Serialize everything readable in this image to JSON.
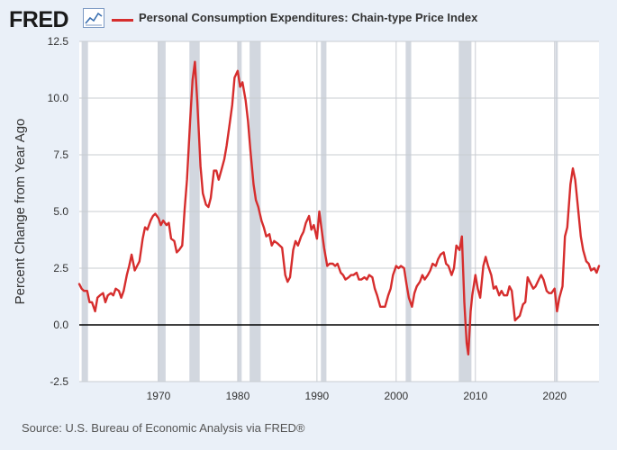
{
  "header": {
    "logo_text": "FRED",
    "logo_icon": "trend-line-icon",
    "series_title": "Personal Consumption Expenditures: Chain-type Price Index"
  },
  "footer": {
    "source": "Source: U.S. Bureau of Economic Analysis via FRED®"
  },
  "colors": {
    "series": "#d62d2d",
    "recession": "#d2d7df",
    "plot_bg": "#ffffff",
    "page_bg": "#eaf0f8",
    "grid": "#c8ccd2",
    "zero_line": "#000000"
  },
  "chart_data": {
    "type": "line",
    "title": "Personal Consumption Expenditures: Chain-type Price Index",
    "xlabel": "",
    "ylabel": "Percent Change from Year Ago",
    "xlim": [
      1960,
      2025.6
    ],
    "ylim": [
      -2.5,
      12.5
    ],
    "yticks": [
      -2.5,
      0.0,
      2.5,
      5.0,
      7.5,
      10.0,
      12.5
    ],
    "ytick_labels": [
      "-2.5",
      "0.0",
      "2.5",
      "5.0",
      "7.5",
      "10.0",
      "12.5"
    ],
    "xticks": [
      1970,
      1980,
      1990,
      2000,
      2010,
      2020
    ],
    "xtick_labels": [
      "1970",
      "1980",
      "1990",
      "2000",
      "2010",
      "2020"
    ],
    "grid": true,
    "recessions": [
      [
        1960.3,
        1961.1
      ],
      [
        1969.9,
        1970.9
      ],
      [
        1973.9,
        1975.2
      ],
      [
        1980.0,
        1980.5
      ],
      [
        1981.5,
        1982.9
      ],
      [
        1990.5,
        1991.2
      ],
      [
        2001.2,
        2001.9
      ],
      [
        2007.9,
        2009.5
      ],
      [
        2020.1,
        2020.4
      ]
    ],
    "series": [
      {
        "name": "Personal Consumption Expenditures: Chain-type Price Index",
        "x": [
          1960.0,
          1960.3,
          1960.6,
          1961.0,
          1961.3,
          1961.6,
          1962.0,
          1962.3,
          1962.6,
          1963.0,
          1963.3,
          1963.6,
          1964.0,
          1964.3,
          1964.6,
          1965.0,
          1965.3,
          1965.6,
          1966.0,
          1966.3,
          1966.6,
          1967.0,
          1967.3,
          1967.6,
          1968.0,
          1968.3,
          1968.6,
          1969.0,
          1969.3,
          1969.6,
          1970.0,
          1970.3,
          1970.6,
          1971.0,
          1971.3,
          1971.6,
          1972.0,
          1972.3,
          1972.6,
          1973.0,
          1973.3,
          1973.6,
          1974.0,
          1974.3,
          1974.6,
          1974.9,
          1975.3,
          1975.6,
          1976.0,
          1976.3,
          1976.6,
          1977.0,
          1977.3,
          1977.6,
          1978.0,
          1978.3,
          1978.6,
          1979.0,
          1979.3,
          1979.6,
          1980.0,
          1980.3,
          1980.6,
          1981.0,
          1981.3,
          1981.6,
          1982.0,
          1982.3,
          1982.6,
          1983.0,
          1983.3,
          1983.6,
          1984.0,
          1984.3,
          1984.6,
          1985.0,
          1985.3,
          1985.6,
          1986.0,
          1986.3,
          1986.6,
          1987.0,
          1987.3,
          1987.6,
          1988.0,
          1988.3,
          1988.6,
          1989.0,
          1989.3,
          1989.6,
          1990.0,
          1990.3,
          1990.6,
          1990.9,
          1991.3,
          1991.6,
          1992.0,
          1992.3,
          1992.6,
          1993.0,
          1993.3,
          1993.6,
          1994.0,
          1994.3,
          1994.6,
          1995.0,
          1995.3,
          1995.6,
          1996.0,
          1996.3,
          1996.6,
          1997.0,
          1997.3,
          1997.6,
          1998.0,
          1998.3,
          1998.6,
          1999.0,
          1999.3,
          1999.6,
          2000.0,
          2000.3,
          2000.6,
          2001.0,
          2001.3,
          2001.6,
          2002.0,
          2002.3,
          2002.6,
          2003.0,
          2003.3,
          2003.6,
          2004.0,
          2004.3,
          2004.6,
          2005.0,
          2005.3,
          2005.6,
          2006.0,
          2006.3,
          2006.6,
          2007.0,
          2007.3,
          2007.6,
          2008.0,
          2008.3,
          2008.6,
          2008.9,
          2009.1,
          2009.4,
          2009.6,
          2010.0,
          2010.3,
          2010.6,
          2011.0,
          2011.3,
          2011.6,
          2012.0,
          2012.3,
          2012.6,
          2013.0,
          2013.3,
          2013.6,
          2014.0,
          2014.3,
          2014.6,
          2015.0,
          2015.3,
          2015.6,
          2016.0,
          2016.3,
          2016.6,
          2017.0,
          2017.3,
          2017.6,
          2018.0,
          2018.3,
          2018.6,
          2019.0,
          2019.3,
          2019.6,
          2020.0,
          2020.3,
          2020.6,
          2021.0,
          2021.3,
          2021.6,
          2022.0,
          2022.3,
          2022.6,
          2023.0,
          2023.3,
          2023.6,
          2024.0,
          2024.3,
          2024.6,
          2025.0,
          2025.3,
          2025.6
        ],
        "y": [
          1.8,
          1.6,
          1.5,
          1.5,
          1.0,
          1.0,
          0.6,
          1.2,
          1.3,
          1.4,
          1.0,
          1.3,
          1.4,
          1.3,
          1.6,
          1.5,
          1.2,
          1.5,
          2.2,
          2.6,
          3.1,
          2.4,
          2.6,
          2.8,
          3.8,
          4.3,
          4.2,
          4.6,
          4.8,
          4.9,
          4.7,
          4.4,
          4.6,
          4.4,
          4.5,
          3.8,
          3.7,
          3.2,
          3.3,
          3.5,
          5.1,
          6.4,
          9.0,
          10.8,
          11.6,
          9.8,
          7.0,
          5.8,
          5.3,
          5.2,
          5.6,
          6.8,
          6.8,
          6.4,
          6.9,
          7.3,
          7.9,
          8.9,
          9.7,
          10.9,
          11.2,
          10.5,
          10.7,
          9.9,
          9.0,
          7.7,
          6.2,
          5.5,
          5.2,
          4.6,
          4.3,
          3.9,
          4.0,
          3.5,
          3.7,
          3.6,
          3.5,
          3.4,
          2.2,
          1.9,
          2.1,
          3.3,
          3.7,
          3.5,
          3.9,
          4.1,
          4.5,
          4.8,
          4.2,
          4.4,
          3.8,
          5.0,
          4.2,
          3.4,
          2.6,
          2.7,
          2.7,
          2.6,
          2.7,
          2.3,
          2.2,
          2.0,
          2.1,
          2.2,
          2.2,
          2.3,
          2.0,
          2.0,
          2.1,
          2.0,
          2.2,
          2.1,
          1.6,
          1.3,
          0.8,
          0.8,
          0.8,
          1.3,
          1.6,
          2.2,
          2.6,
          2.5,
          2.6,
          2.5,
          1.8,
          1.2,
          0.8,
          1.4,
          1.7,
          1.9,
          2.2,
          2.0,
          2.2,
          2.4,
          2.7,
          2.6,
          2.9,
          3.1,
          3.2,
          2.7,
          2.6,
          2.2,
          2.5,
          3.5,
          3.3,
          3.9,
          1.0,
          -0.8,
          -1.3,
          0.6,
          1.3,
          2.2,
          1.6,
          1.2,
          2.6,
          3.0,
          2.6,
          2.2,
          1.6,
          1.7,
          1.3,
          1.5,
          1.3,
          1.3,
          1.7,
          1.5,
          0.2,
          0.3,
          0.4,
          0.9,
          1.0,
          2.1,
          1.8,
          1.6,
          1.7,
          2.0,
          2.2,
          2.0,
          1.5,
          1.4,
          1.4,
          1.6,
          0.6,
          1.2,
          1.7,
          3.9,
          4.3,
          6.2,
          6.9,
          6.4,
          5.0,
          3.9,
          3.3,
          2.8,
          2.7,
          2.4,
          2.5,
          2.3,
          2.6
        ]
      }
    ]
  }
}
